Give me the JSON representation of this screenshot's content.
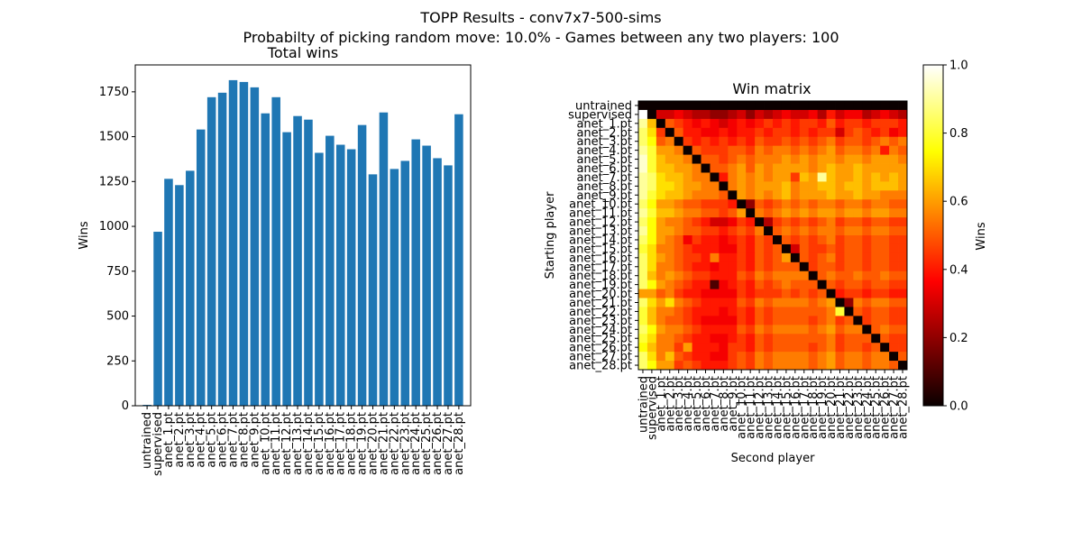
{
  "figure": {
    "title": "TOPP Results - conv7x7-500-sims",
    "subtitle": "Probabilty of picking random move: 10.0% - Games between any two players: 100"
  },
  "chart_data": [
    {
      "type": "bar",
      "title": "Total wins",
      "xlabel": "",
      "ylabel": "Wins",
      "ylim": [
        0,
        1900
      ],
      "yticks": [
        0,
        250,
        500,
        750,
        1000,
        1250,
        1500,
        1750
      ],
      "grid": false,
      "bar_color": "#1f77b4",
      "categories": [
        "untrained",
        "supervised",
        "anet_1.pt",
        "anet_2.pt",
        "anet_3.pt",
        "anet_4.pt",
        "anet_5.pt",
        "anet_6.pt",
        "anet_7.pt",
        "anet_8.pt",
        "anet_9.pt",
        "anet_10.pt",
        "anet_11.pt",
        "anet_12.pt",
        "anet_13.pt",
        "anet_14.pt",
        "anet_15.pt",
        "anet_16.pt",
        "anet_17.pt",
        "anet_18.pt",
        "anet_19.pt",
        "anet_20.pt",
        "anet_21.pt",
        "anet_22.pt",
        "anet_23.pt",
        "anet_24.pt",
        "anet_25.pt",
        "anet_26.pt",
        "anet_27.pt",
        "anet_28.pt"
      ],
      "values": [
        5,
        970,
        1265,
        1230,
        1310,
        1540,
        1720,
        1745,
        1815,
        1805,
        1775,
        1630,
        1720,
        1525,
        1615,
        1595,
        1410,
        1505,
        1455,
        1430,
        1565,
        1290,
        1635,
        1320,
        1365,
        1485,
        1450,
        1380,
        1340,
        1625
      ]
    },
    {
      "type": "heatmap",
      "title": "Win matrix",
      "xlabel": "Second player",
      "ylabel": "Starting player",
      "colormap": "hot",
      "colorbar": {
        "label": "Wins",
        "range": [
          0.0,
          1.0
        ],
        "ticks": [
          "0.0",
          "0.2",
          "0.4",
          "0.6",
          "0.8",
          "1.0"
        ]
      },
      "labels": [
        "untrained",
        "supervised",
        "anet_1.pt",
        "anet_2.pt",
        "anet_3.pt",
        "anet_4.pt",
        "anet_5.pt",
        "anet_6.pt",
        "anet_7.pt",
        "anet_8.pt",
        "anet_9.pt",
        "anet_10.pt",
        "anet_11.pt",
        "anet_12.pt",
        "anet_13.pt",
        "anet_14.pt",
        "anet_15.pt",
        "anet_16.pt",
        "anet_17.pt",
        "anet_18.pt",
        "anet_19.pt",
        "anet_20.pt",
        "anet_21.pt",
        "anet_22.pt",
        "anet_23.pt",
        "anet_24.pt",
        "anet_25.pt",
        "anet_26.pt",
        "anet_27.pt",
        "anet_28.pt"
      ],
      "matrix_rows": [
        "0.00 0.00 0.00 0.00 0.00 0.00 0.00 0.00 0.00 0.00 0.00 0.00 0.00 0.00 0.00 0.00 0.00 0.00 0.00 0.00 0.00 0.00 0.00 0.00 0.00 0.00 0.00 0.00 0.00 0.00",
        "1.00 0.00 0.30 0.30 0.35 0.30 0.25 0.25 0.20 0.20 0.25 0.30 0.20 0.30 0.25 0.30 0.35 0.30 0.30 0.35 0.25 0.40 0.30 0.35 0.35 0.25 0.30 0.35 0.30 0.25",
        "0.90 0.65 0.00 0.50 0.45 0.40 0.35 0.40 0.35 0.30 0.35 0.40 0.35 0.40 0.45 0.40 0.45 0.40 0.45 0.45 0.40 0.50 0.40 0.45 0.45 0.40 0.45 0.45 0.45 0.40",
        "0.85 0.70 0.45 0.00 0.50 0.40 0.40 0.35 0.35 0.40 0.35 0.40 0.40 0.45 0.40 0.45 0.45 0.40 0.45 0.40 0.45 0.45 0.30 0.45 0.50 0.45 0.40 0.45 0.35 0.40",
        "0.85 0.75 0.50 0.55 0.00 0.45 0.40 0.45 0.40 0.45 0.40 0.45 0.40 0.50 0.45 0.45 0.50 0.45 0.50 0.45 0.50 0.55 0.45 0.50 0.50 0.45 0.50 0.55 0.50 0.55",
        "0.90 0.80 0.60 0.60 0.55 0.00 0.50 0.45 0.45 0.45 0.50 0.50 0.45 0.55 0.50 0.55 0.55 0.50 0.55 0.50 0.55 0.60 0.50 0.55 0.55 0.50 0.55 0.40 0.55 0.50",
        "0.95 0.80 0.65 0.60 0.60 0.55 0.00 0.50 0.50 0.45 0.50 0.55 0.50 0.55 0.55 0.55 0.60 0.55 0.60 0.55 0.60 0.60 0.55 0.60 0.60 0.55 0.60 0.60 0.60 0.55",
        "0.95 0.80 0.65 0.65 0.60 0.60 0.55 0.00 0.50 0.50 0.55 0.60 0.50 0.60 0.55 0.60 0.60 0.60 0.60 0.55 0.60 0.65 0.60 0.60 0.65 0.60 0.60 0.60 0.60 0.60",
        "0.90 0.85 0.70 0.65 0.65 0.60 0.55 0.55 0.00 0.40 0.55 0.60 0.55 0.60 0.55 0.60 0.60 0.45 0.65 0.60 0.90 0.65 0.60 0.60 0.65 0.60 0.65 0.60 0.65 0.60",
        "0.90 0.85 0.70 0.70 0.65 0.60 0.60 0.55 0.55 0.00 0.55 0.60 0.55 0.60 0.60 0.60 0.65 0.55 0.60 0.60 0.65 0.65 0.60 0.65 0.65 0.60 0.65 0.65 0.65 0.60",
        "0.90 0.80 0.70 0.65 0.65 0.60 0.55 0.55 0.55 0.50 0.00 0.60 0.55 0.60 0.55 0.60 0.65 0.55 0.60 0.60 0.60 0.65 0.60 0.60 0.65 0.60 0.60 0.55 0.55 0.55",
        "0.85 0.75 0.60 0.60 0.55 0.50 0.50 0.45 0.45 0.45 0.40 0.00 0.20 0.50 0.45 0.50 0.55 0.50 0.55 0.50 0.55 0.55 0.50 0.55 0.55 0.50 0.55 0.55 0.50 0.50",
        "0.90 0.80 0.65 0.65 0.60 0.55 0.55 0.50 0.50 0.45 0.50 0.60 0.00 0.55 0.50 0.55 0.60 0.55 0.60 0.55 0.60 0.60 0.55 0.60 0.60 0.55 0.60 0.60 0.55 0.55",
        "0.85 0.75 0.60 0.55 0.55 0.50 0.45 0.40 0.30 0.30 0.35 0.45 0.40 0.00 0.25 0.45 0.50 0.45 0.50 0.45 0.50 0.55 0.45 0.50 0.50 0.45 0.50 0.50 0.45 0.45",
        "0.90 0.75 0.60 0.60 0.55 0.50 0.50 0.45 0.45 0.40 0.45 0.50 0.45 0.55 0.00 0.50 0.55 0.50 0.55 0.50 0.55 0.55 0.50 0.55 0.55 0.50 0.55 0.55 0.50 0.50",
        "0.85 0.75 0.60 0.55 0.50 0.35 0.45 0.40 0.40 0.35 0.40 0.45 0.40 0.50 0.45 0.00 0.50 0.45 0.50 0.45 0.50 0.55 0.45 0.50 0.50 0.45 0.50 0.50 0.45 0.45",
        "0.80 0.70 0.55 0.55 0.50 0.45 0.40 0.40 0.40 0.35 0.35 0.45 0.40 0.50 0.45 0.50 0.00 0.30 0.50 0.45 0.45 0.50 0.45 0.50 0.50 0.45 0.50 0.50 0.45 0.45",
        "0.85 0.70 0.60 0.55 0.50 0.45 0.45 0.40 0.55 0.40 0.40 0.45 0.40 0.50 0.45 0.50 0.60 0.00 0.50 0.45 0.50 0.55 0.45 0.50 0.50 0.45 0.50 0.50 0.45 0.45",
        "0.85 0.70 0.55 0.55 0.50 0.45 0.40 0.40 0.35 0.40 0.40 0.45 0.40 0.50 0.45 0.50 0.50 0.50 0.00 0.45 0.50 0.50 0.45 0.50 0.50 0.45 0.50 0.50 0.45 0.45",
        "0.85 0.65 0.55 0.60 0.55 0.50 0.45 0.45 0.40 0.40 0.40 0.50 0.45 0.55 0.50 0.55 0.55 0.55 0.55 0.00 0.50 0.55 0.50 0.50 0.55 0.50 0.50 0.55 0.50 0.50",
        "0.85 0.75 0.60 0.55 0.50 0.45 0.40 0.40 0.10 0.35 0.40 0.45 0.40 0.50 0.45 0.50 0.55 0.50 0.50 0.50 0.00 0.50 0.45 0.50 0.50 0.45 0.50 0.50 0.45 0.45",
        "0.60 0.60 0.50 0.55 0.45 0.40 0.40 0.35 0.35 0.35 0.35 0.45 0.40 0.45 0.45 0.45 0.50 0.45 0.50 0.45 0.50 0.00 0.40 0.45 0.45 0.40 0.45 0.45 0.40 0.40",
        "0.85 0.70 0.60 0.70 0.55 0.50 0.45 0.40 0.40 0.40 0.40 0.50 0.45 0.55 0.50 0.55 0.55 0.55 0.55 0.50 0.55 0.60 0.00 0.20 0.55 0.50 0.55 0.55 0.50 0.50",
        "0.80 0.65 0.55 0.55 0.50 0.45 0.40 0.40 0.40 0.35 0.40 0.45 0.40 0.50 0.45 0.50 0.50 0.50 0.50 0.50 0.50 0.55 0.80 0.00 0.50 0.45 0.50 0.50 0.45 0.45",
        "0.80 0.65 0.55 0.50 0.50 0.45 0.40 0.35 0.35 0.35 0.35 0.45 0.40 0.50 0.45 0.50 0.50 0.50 0.50 0.45 0.50 0.55 0.45 0.50 0.00 0.45 0.50 0.50 0.45 0.45",
        "0.85 0.75 0.60 0.55 0.55 0.50 0.45 0.40 0.40 0.40 0.40 0.50 0.45 0.55 0.50 0.55 0.55 0.55 0.55 0.50 0.55 0.60 0.50 0.55 0.55 0.00 0.50 0.55 0.50 0.50",
        "0.80 0.70 0.55 0.55 0.50 0.45 0.40 0.40 0.35 0.35 0.40 0.45 0.40 0.50 0.45 0.50 0.50 0.50 0.50 0.50 0.50 0.55 0.45 0.50 0.50 0.50 0.00 0.50 0.45 0.45",
        "0.75 0.65 0.55 0.55 0.45 0.60 0.40 0.40 0.40 0.35 0.45 0.45 0.40 0.50 0.45 0.50 0.50 0.50 0.50 0.45 0.50 0.55 0.45 0.50 0.50 0.45 0.50 0.00 0.45 0.45",
        "0.85 0.70 0.55 0.65 0.50 0.45 0.40 0.40 0.35 0.35 0.45 0.50 0.45 0.55 0.50 0.55 0.55 0.55 0.55 0.50 0.55 0.60 0.50 0.55 0.55 0.50 0.55 0.55 0.00 0.50",
        "0.85 0.75 0.60 0.60 0.45 0.50 0.45 0.40 0.40 0.40 0.45 0.50 0.45 0.55 0.50 0.55 0.55 0.55 0.55 0.50 0.55 0.60 0.50 0.55 0.55 0.50 0.55 0.55 0.50 0.00"
      ]
    }
  ]
}
